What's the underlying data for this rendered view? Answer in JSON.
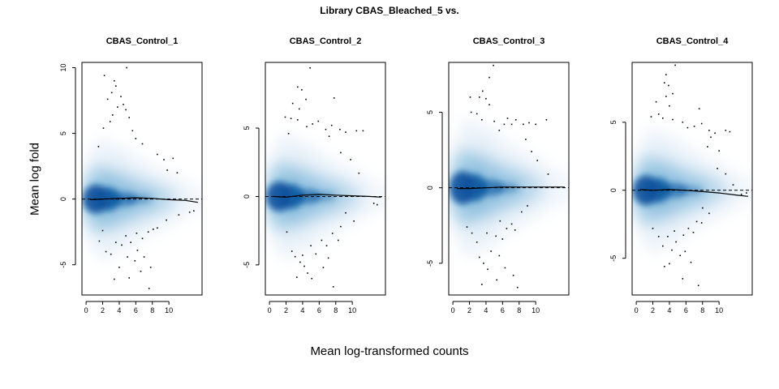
{
  "figure": {
    "title": "Library CBAS_Bleached_5 vs.",
    "xlabel": "Mean log-transformed counts",
    "ylabel": "Mean log fold"
  },
  "colors": {
    "density_light": "#dbe9f6",
    "density_mid": "#6baed6",
    "density_dark": "#08519c",
    "points": "#000000",
    "loess_line": "#000000",
    "zero_line": "#000000"
  },
  "chart_data": [
    {
      "type": "scatter",
      "style": "smoothed-density-scatter",
      "title": "CBAS_Control_1",
      "xlim": [
        -0.5,
        14
      ],
      "ylim": [
        -7.3,
        10.4
      ],
      "xticks": [
        0,
        2,
        4,
        6,
        8,
        10
      ],
      "yticks": [
        -5,
        0,
        5,
        10
      ],
      "reference_line": {
        "y": 0,
        "style": "dashed"
      },
      "loess": {
        "x": [
          0.5,
          2,
          4,
          6,
          8,
          10,
          12,
          13.5
        ],
        "y": [
          -0.05,
          0.0,
          0.05,
          0.1,
          0.05,
          -0.05,
          -0.1,
          -0.25
        ]
      },
      "outliers": [
        [
          2.2,
          9.4
        ],
        [
          3.4,
          9.0
        ],
        [
          4.9,
          10.0
        ],
        [
          3.1,
          8.1
        ],
        [
          3.6,
          8.6
        ],
        [
          4.2,
          7.8
        ],
        [
          2.6,
          7.6
        ],
        [
          4.5,
          7.2
        ],
        [
          3.8,
          7.0
        ],
        [
          4.8,
          6.8
        ],
        [
          3.2,
          6.4
        ],
        [
          5.2,
          6.2
        ],
        [
          2.9,
          5.9
        ],
        [
          5.6,
          5.2
        ],
        [
          2.1,
          5.4
        ],
        [
          6.0,
          4.6
        ],
        [
          6.8,
          4.2
        ],
        [
          1.5,
          4.0
        ],
        [
          8.6,
          3.4
        ],
        [
          9.4,
          3.0
        ],
        [
          10.5,
          3.1
        ],
        [
          9.8,
          2.2
        ],
        [
          11.0,
          2.0
        ],
        [
          2.0,
          -2.4
        ],
        [
          8.6,
          -2.2
        ],
        [
          9.7,
          -1.6
        ],
        [
          12.5,
          -1.0
        ],
        [
          13.0,
          -0.9
        ],
        [
          11.2,
          -1.2
        ],
        [
          1.6,
          -3.2
        ],
        [
          2.4,
          -4.0
        ],
        [
          3.0,
          -4.2
        ],
        [
          3.6,
          -3.3
        ],
        [
          4.8,
          -2.8
        ],
        [
          5.4,
          -3.3
        ],
        [
          6.1,
          -2.6
        ],
        [
          6.8,
          -3.0
        ],
        [
          7.5,
          -2.5
        ],
        [
          8.1,
          -2.3
        ],
        [
          5.0,
          -4.4
        ],
        [
          5.9,
          -4.7
        ],
        [
          7.0,
          -4.4
        ],
        [
          4.0,
          -5.2
        ],
        [
          6.6,
          -5.5
        ],
        [
          7.8,
          -5.2
        ],
        [
          3.4,
          -6.1
        ],
        [
          5.2,
          -6.0
        ],
        [
          7.6,
          -6.8
        ],
        [
          6.2,
          -3.9
        ],
        [
          4.3,
          -3.5
        ]
      ]
    },
    {
      "type": "scatter",
      "style": "smoothed-density-scatter",
      "title": "CBAS_Control_2",
      "xlim": [
        -0.5,
        14
      ],
      "ylim": [
        -7.2,
        9.8
      ],
      "xticks": [
        0,
        2,
        4,
        6,
        8,
        10
      ],
      "yticks": [
        -5,
        0,
        5
      ],
      "reference_line": {
        "y": 0,
        "style": "dashed"
      },
      "loess": {
        "x": [
          0.5,
          2,
          4,
          6,
          8,
          10,
          12,
          13.5
        ],
        "y": [
          0.0,
          -0.05,
          0.1,
          0.15,
          0.1,
          0.05,
          0.0,
          -0.05
        ]
      },
      "outliers": [
        [
          4.9,
          9.4
        ],
        [
          3.4,
          8.0
        ],
        [
          3.9,
          7.8
        ],
        [
          4.4,
          7.1
        ],
        [
          7.8,
          7.2
        ],
        [
          2.8,
          6.8
        ],
        [
          3.6,
          6.4
        ],
        [
          1.9,
          5.8
        ],
        [
          2.6,
          5.7
        ],
        [
          3.4,
          5.6
        ],
        [
          5.2,
          5.3
        ],
        [
          5.9,
          5.5
        ],
        [
          4.5,
          5.1
        ],
        [
          6.8,
          4.9
        ],
        [
          7.5,
          5.2
        ],
        [
          8.5,
          4.9
        ],
        [
          9.2,
          4.7
        ],
        [
          10.5,
          4.8
        ],
        [
          11.3,
          4.8
        ],
        [
          2.3,
          4.6
        ],
        [
          7.2,
          4.4
        ],
        [
          8.6,
          3.2
        ],
        [
          9.8,
          2.7
        ],
        [
          10.8,
          1.7
        ],
        [
          12.6,
          -0.5
        ],
        [
          13.0,
          -0.6
        ],
        [
          9.2,
          -1.2
        ],
        [
          8.6,
          -2.2
        ],
        [
          10.2,
          -1.8
        ],
        [
          2.1,
          -2.6
        ],
        [
          2.7,
          -4.0
        ],
        [
          3.1,
          -4.4
        ],
        [
          3.7,
          -4.8
        ],
        [
          4.2,
          -5.1
        ],
        [
          5.0,
          -3.6
        ],
        [
          5.6,
          -4.2
        ],
        [
          6.3,
          -3.2
        ],
        [
          6.9,
          -3.6
        ],
        [
          7.6,
          -2.7
        ],
        [
          4.6,
          -5.6
        ],
        [
          6.5,
          -5.2
        ],
        [
          7.1,
          -4.5
        ],
        [
          3.3,
          -5.9
        ],
        [
          5.1,
          -6.0
        ],
        [
          7.7,
          -6.6
        ],
        [
          8.3,
          -3.2
        ],
        [
          4.0,
          -4.3
        ]
      ]
    },
    {
      "type": "scatter",
      "style": "smoothed-density-scatter",
      "title": "CBAS_Control_3",
      "xlim": [
        -0.5,
        14
      ],
      "ylim": [
        -7.1,
        8.3
      ],
      "xticks": [
        0,
        2,
        4,
        6,
        8,
        10
      ],
      "yticks": [
        -5,
        0,
        5
      ],
      "reference_line": {
        "y": 0,
        "style": "dashed"
      },
      "loess": {
        "x": [
          0.5,
          2,
          4,
          6,
          8,
          10,
          12,
          13.5
        ],
        "y": [
          -0.05,
          -0.05,
          0.0,
          0.05,
          0.05,
          0.05,
          0.05,
          0.05
        ]
      },
      "outliers": [
        [
          4.9,
          8.1
        ],
        [
          4.4,
          7.3
        ],
        [
          3.6,
          6.4
        ],
        [
          2.1,
          6.0
        ],
        [
          3.2,
          6.0
        ],
        [
          4.0,
          5.9
        ],
        [
          4.4,
          5.5
        ],
        [
          2.2,
          5.0
        ],
        [
          2.9,
          4.9
        ],
        [
          3.5,
          4.5
        ],
        [
          5.0,
          4.4
        ],
        [
          6.6,
          4.6
        ],
        [
          7.1,
          4.2
        ],
        [
          7.6,
          4.5
        ],
        [
          8.5,
          4.2
        ],
        [
          9.2,
          4.3
        ],
        [
          10.0,
          4.2
        ],
        [
          11.3,
          4.5
        ],
        [
          6.2,
          4.2
        ],
        [
          5.6,
          3.8
        ],
        [
          8.8,
          3.2
        ],
        [
          9.5,
          2.4
        ],
        [
          10.2,
          1.8
        ],
        [
          11.5,
          0.9
        ],
        [
          9.0,
          -1.2
        ],
        [
          8.3,
          -1.6
        ],
        [
          1.7,
          -2.6
        ],
        [
          2.3,
          -3.0
        ],
        [
          7.1,
          -2.4
        ],
        [
          7.5,
          -2.8
        ],
        [
          6.5,
          -2.7
        ],
        [
          5.7,
          -2.2
        ],
        [
          5.2,
          -3.2
        ],
        [
          6.0,
          -3.4
        ],
        [
          4.6,
          -4.2
        ],
        [
          3.2,
          -4.6
        ],
        [
          3.7,
          -5.0
        ],
        [
          5.6,
          -4.5
        ],
        [
          6.3,
          -5.3
        ],
        [
          4.2,
          -5.4
        ],
        [
          3.5,
          -6.4
        ],
        [
          5.3,
          -6.1
        ],
        [
          7.3,
          -5.8
        ],
        [
          7.8,
          -6.6
        ],
        [
          2.9,
          -3.6
        ],
        [
          4.1,
          -3.0
        ]
      ]
    },
    {
      "type": "scatter",
      "style": "smoothed-density-scatter",
      "title": "CBAS_Control_4",
      "xlim": [
        -0.5,
        14
      ],
      "ylim": [
        -7.7,
        9.4
      ],
      "xticks": [
        0,
        2,
        4,
        6,
        8,
        10
      ],
      "yticks": [
        -5,
        0,
        5
      ],
      "reference_line": {
        "y": 0,
        "style": "dashed"
      },
      "loess": {
        "x": [
          0.5,
          2,
          4,
          6,
          8,
          10,
          12,
          13.5
        ],
        "y": [
          0.05,
          0.0,
          0.05,
          0.0,
          -0.1,
          -0.2,
          -0.35,
          -0.45
        ]
      },
      "outliers": [
        [
          4.7,
          9.2
        ],
        [
          3.6,
          8.5
        ],
        [
          3.4,
          7.9
        ],
        [
          3.9,
          7.7
        ],
        [
          4.4,
          7.1
        ],
        [
          3.6,
          6.9
        ],
        [
          2.4,
          6.5
        ],
        [
          4.0,
          6.2
        ],
        [
          7.6,
          6.0
        ],
        [
          2.7,
          5.6
        ],
        [
          1.8,
          5.4
        ],
        [
          3.2,
          5.3
        ],
        [
          4.4,
          5.2
        ],
        [
          5.6,
          5.0
        ],
        [
          6.2,
          4.6
        ],
        [
          7.0,
          4.7
        ],
        [
          7.9,
          4.9
        ],
        [
          8.8,
          4.4
        ],
        [
          9.5,
          4.2
        ],
        [
          10.8,
          4.4
        ],
        [
          11.3,
          4.3
        ],
        [
          9.0,
          3.9
        ],
        [
          8.6,
          3.2
        ],
        [
          10.0,
          2.9
        ],
        [
          9.8,
          1.6
        ],
        [
          10.8,
          1.2
        ],
        [
          11.7,
          0.4
        ],
        [
          12.7,
          -0.3
        ],
        [
          13.3,
          -0.2
        ],
        [
          8.0,
          -1.3
        ],
        [
          8.8,
          -1.7
        ],
        [
          7.3,
          -2.3
        ],
        [
          7.9,
          -2.4
        ],
        [
          2.0,
          -2.8
        ],
        [
          2.7,
          -3.4
        ],
        [
          3.2,
          -4.1
        ],
        [
          3.8,
          -3.4
        ],
        [
          4.3,
          -4.4
        ],
        [
          4.8,
          -3.8
        ],
        [
          5.7,
          -3.3
        ],
        [
          6.3,
          -2.8
        ],
        [
          6.9,
          -3.1
        ],
        [
          5.3,
          -4.8
        ],
        [
          5.9,
          -4.5
        ],
        [
          6.6,
          -5.3
        ],
        [
          3.4,
          -5.6
        ],
        [
          4.0,
          -5.4
        ],
        [
          5.6,
          -6.5
        ],
        [
          7.5,
          -7.0
        ],
        [
          4.6,
          -3.0
        ]
      ]
    }
  ]
}
